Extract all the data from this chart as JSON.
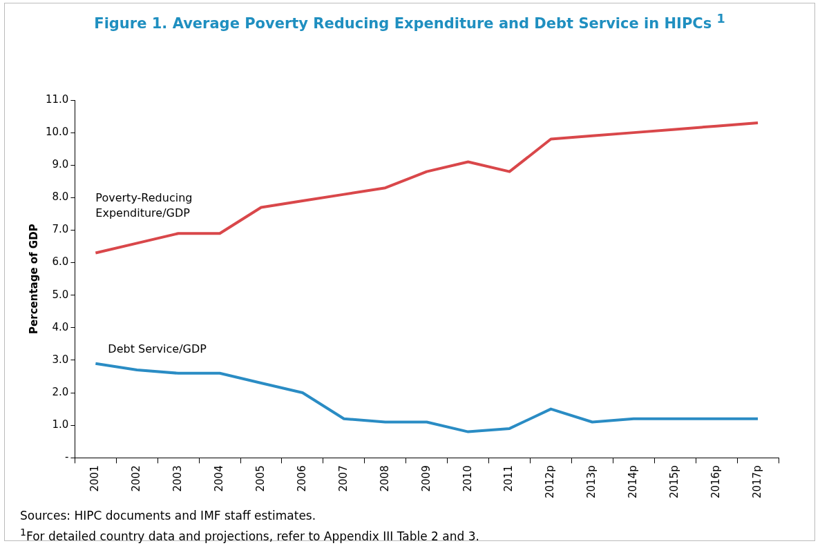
{
  "chart_data": {
    "type": "line",
    "title": "Figure 1. Average Poverty Reducing Expenditure and Debt Service in HIPCs $^{1}$",
    "ylabel": "Percentage of GDP",
    "categories": [
      "2001",
      "2002",
      "2003",
      "2004",
      "2005",
      "2006",
      "2007",
      "2008",
      "2009",
      "2010",
      "2011",
      "2012p",
      "2013p",
      "2014p",
      "2015p",
      "2016p",
      "2017p"
    ],
    "series": [
      {
        "name": "Poverty-Reducing Expenditure/GDP",
        "color": "#d9474a",
        "values": [
          6.3,
          6.6,
          6.9,
          6.9,
          7.7,
          7.9,
          8.1,
          8.3,
          8.8,
          9.1,
          8.8,
          9.8,
          9.9,
          10.0,
          10.1,
          10.2,
          10.3
        ]
      },
      {
        "name": "Debt Service/GDP",
        "color": "#2a8cc4",
        "values": [
          2.9,
          2.7,
          2.6,
          2.6,
          2.3,
          2.0,
          1.2,
          1.1,
          1.1,
          0.8,
          0.9,
          1.5,
          1.1,
          1.2,
          1.2,
          1.2,
          1.2
        ]
      }
    ],
    "ylim": [
      0,
      11
    ],
    "yticks": [
      {
        "value": 0,
        "label": "-"
      },
      {
        "value": 1,
        "label": "1.0"
      },
      {
        "value": 2,
        "label": "2.0"
      },
      {
        "value": 3,
        "label": "3.0"
      },
      {
        "value": 4,
        "label": "4.0"
      },
      {
        "value": 5,
        "label": "5.0"
      },
      {
        "value": 6,
        "label": "6.0"
      },
      {
        "value": 7,
        "label": "7.0"
      },
      {
        "value": 8,
        "label": "8.0"
      },
      {
        "value": 9,
        "label": "9.0"
      },
      {
        "value": 10,
        "label": "10.0"
      },
      {
        "value": 11,
        "label": "11.0"
      }
    ],
    "grid": false,
    "legend": false,
    "marker": "none",
    "line_style": "solid",
    "annotations": [
      "Sources: HIPC documents and IMF staff estimates.",
      "$^{1}$For detailed country data and projections, refer to Appendix III Table 2 and 3."
    ]
  }
}
